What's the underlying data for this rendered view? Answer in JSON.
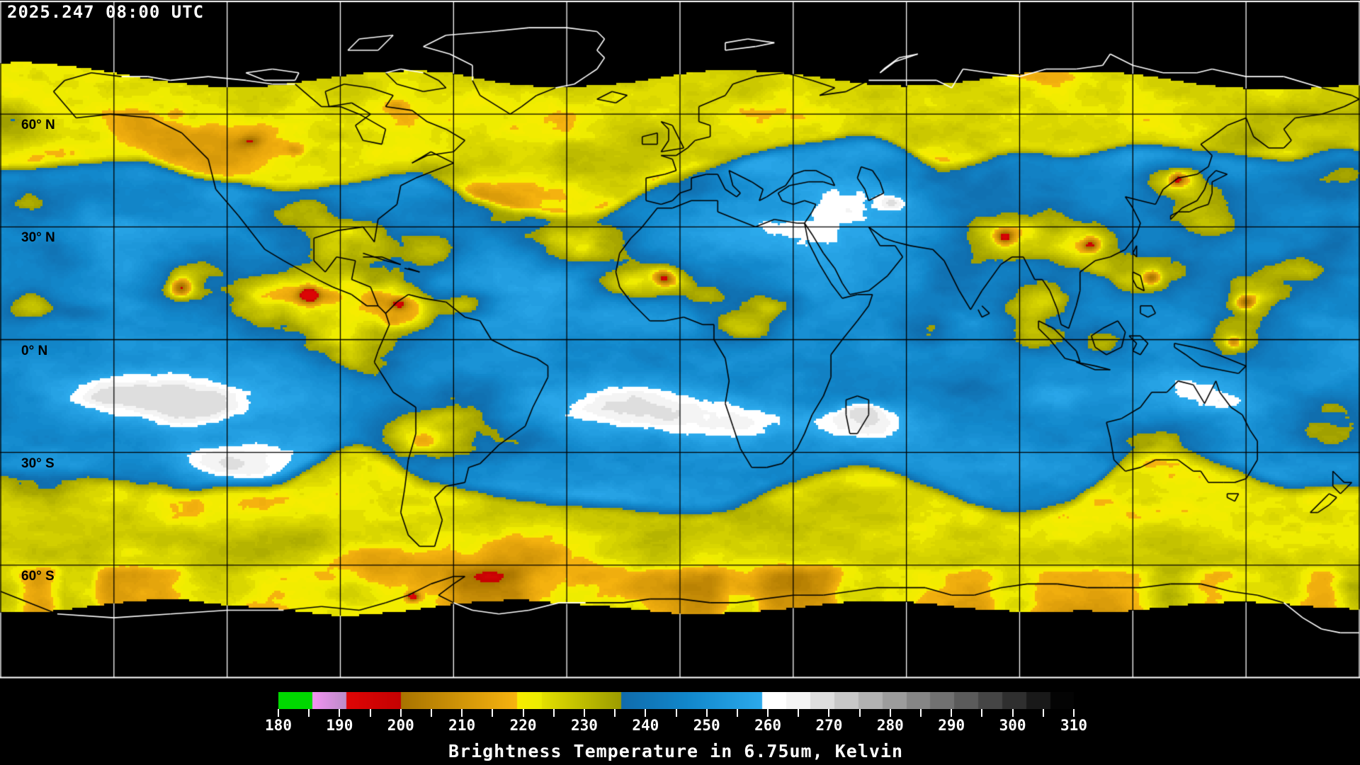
{
  "header": {
    "timestamp": "2025.247 08:00 UTC"
  },
  "map": {
    "projection": "equirectangular",
    "no_data_color": "#000000",
    "gridline_color_over_data": "#000000",
    "gridline_color_over_nodata": "#ffffff",
    "lon_gridline_step_deg": 30,
    "lat_gridline_step_deg": 30,
    "latitude_labels": [
      {
        "text": "60° N",
        "lat": 60
      },
      {
        "text": "30° N",
        "lat": 30
      },
      {
        "text": "0° N",
        "lat": 0
      },
      {
        "text": "30° S",
        "lat": -30
      },
      {
        "text": "60° S",
        "lat": -60
      }
    ]
  },
  "colorbar": {
    "title": "Brightness Temperature in 6.75um, Kelvin",
    "units": "Kelvin",
    "min": 180,
    "max": 310,
    "major_ticks": [
      180,
      190,
      200,
      210,
      220,
      230,
      240,
      250,
      260,
      270,
      280,
      290,
      300,
      310
    ],
    "minor_tick_step": 5,
    "segments": [
      {
        "from": 180,
        "to": 185.5,
        "c1": "#00d800",
        "c2": "#00d800"
      },
      {
        "from": 185.5,
        "to": 191,
        "c1": "#f492f4",
        "c2": "#bc8cc8"
      },
      {
        "from": 191,
        "to": 200,
        "c1": "#e00606",
        "c2": "#c40202"
      },
      {
        "from": 200,
        "to": 219,
        "c1": "#a87400",
        "c2": "#f8b410"
      },
      {
        "from": 219,
        "to": 223,
        "c1": "#f8ec00",
        "c2": "#ecec00"
      },
      {
        "from": 223,
        "to": 236,
        "c1": "#e4e000",
        "c2": "#9c9c00"
      },
      {
        "from": 236,
        "to": 247,
        "c1": "#106cac",
        "c2": "#1288cc"
      },
      {
        "from": 247,
        "to": 259,
        "c1": "#1288cc",
        "c2": "#2caaec"
      },
      {
        "from": 259,
        "to": 263,
        "c1": "#ffffff",
        "c2": "#ffffff"
      },
      {
        "from": 263,
        "to": 310,
        "c1": "#f4f4f4",
        "c2": "#040404"
      }
    ]
  }
}
